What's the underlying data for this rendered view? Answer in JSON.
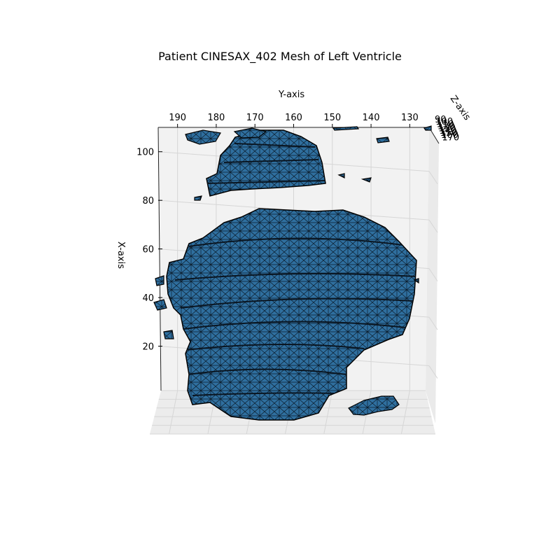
{
  "chart_data": {
    "type": "3d-surface-mesh",
    "title": "Patient CINESAX_402 Mesh of Left Ventricle",
    "xlabel": "Y-axis",
    "ylabel": "X-axis",
    "zlabel": "Z-axis",
    "y_axis_ticks": [
      190,
      180,
      170,
      160,
      150,
      140,
      130
    ],
    "x_axis_ticks": [
      100,
      80,
      60,
      40,
      20
    ],
    "z_axis_ticks": [
      90,
      100,
      110,
      120,
      130,
      140,
      150,
      160,
      170
    ],
    "y_axis_range": [
      195,
      125
    ],
    "x_axis_range": [
      0,
      110
    ],
    "z_axis_range": [
      90,
      175
    ],
    "mesh_color": "#3a78a8",
    "edge_color": "#000000",
    "grid": true,
    "pane_color": "#f2f2f2"
  }
}
